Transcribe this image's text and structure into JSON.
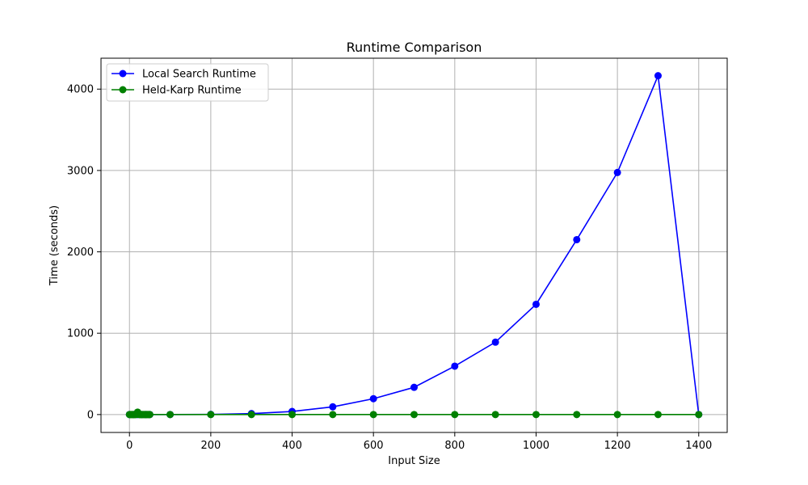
{
  "chart_data": {
    "type": "line",
    "title": "Runtime Comparison",
    "xlabel": "Input Size",
    "ylabel": "Time (seconds)",
    "xlim": [
      -70,
      1470
    ],
    "ylim": [
      -220,
      4380
    ],
    "xticks": [
      0,
      200,
      400,
      600,
      800,
      1000,
      1200,
      1400
    ],
    "yticks": [
      0,
      1000,
      2000,
      3000,
      4000
    ],
    "grid": true,
    "legend_position": "top-left",
    "series": [
      {
        "name": "Local Search Runtime",
        "color": "#0000ff",
        "x": [
          0,
          10,
          20,
          30,
          40,
          50,
          100,
          200,
          300,
          400,
          500,
          600,
          700,
          800,
          900,
          1000,
          1100,
          1200,
          1300,
          1400
        ],
        "y": [
          0,
          0,
          0,
          0,
          0,
          0,
          0,
          2,
          12,
          38,
          95,
          195,
          335,
          595,
          890,
          1355,
          2150,
          2975,
          4165,
          0
        ]
      },
      {
        "name": "Held-Karp Runtime",
        "color": "#008000",
        "x": [
          0,
          2,
          4,
          6,
          8,
          10,
          12,
          14,
          16,
          18,
          20,
          22,
          24,
          26,
          28,
          30,
          32,
          34,
          36,
          38,
          40,
          42,
          44,
          46,
          48,
          50,
          100,
          200,
          300,
          400,
          500,
          600,
          700,
          800,
          900,
          1000,
          1100,
          1200,
          1300,
          1400
        ],
        "y": [
          0,
          0,
          0,
          0,
          0,
          0,
          0,
          0,
          0,
          5,
          30,
          3,
          0,
          0,
          0,
          0,
          0,
          0,
          0,
          0,
          0,
          0,
          0,
          0,
          0,
          0,
          0,
          0,
          0,
          0,
          0,
          0,
          0,
          0,
          0,
          0,
          0,
          0,
          0,
          0
        ]
      }
    ]
  }
}
